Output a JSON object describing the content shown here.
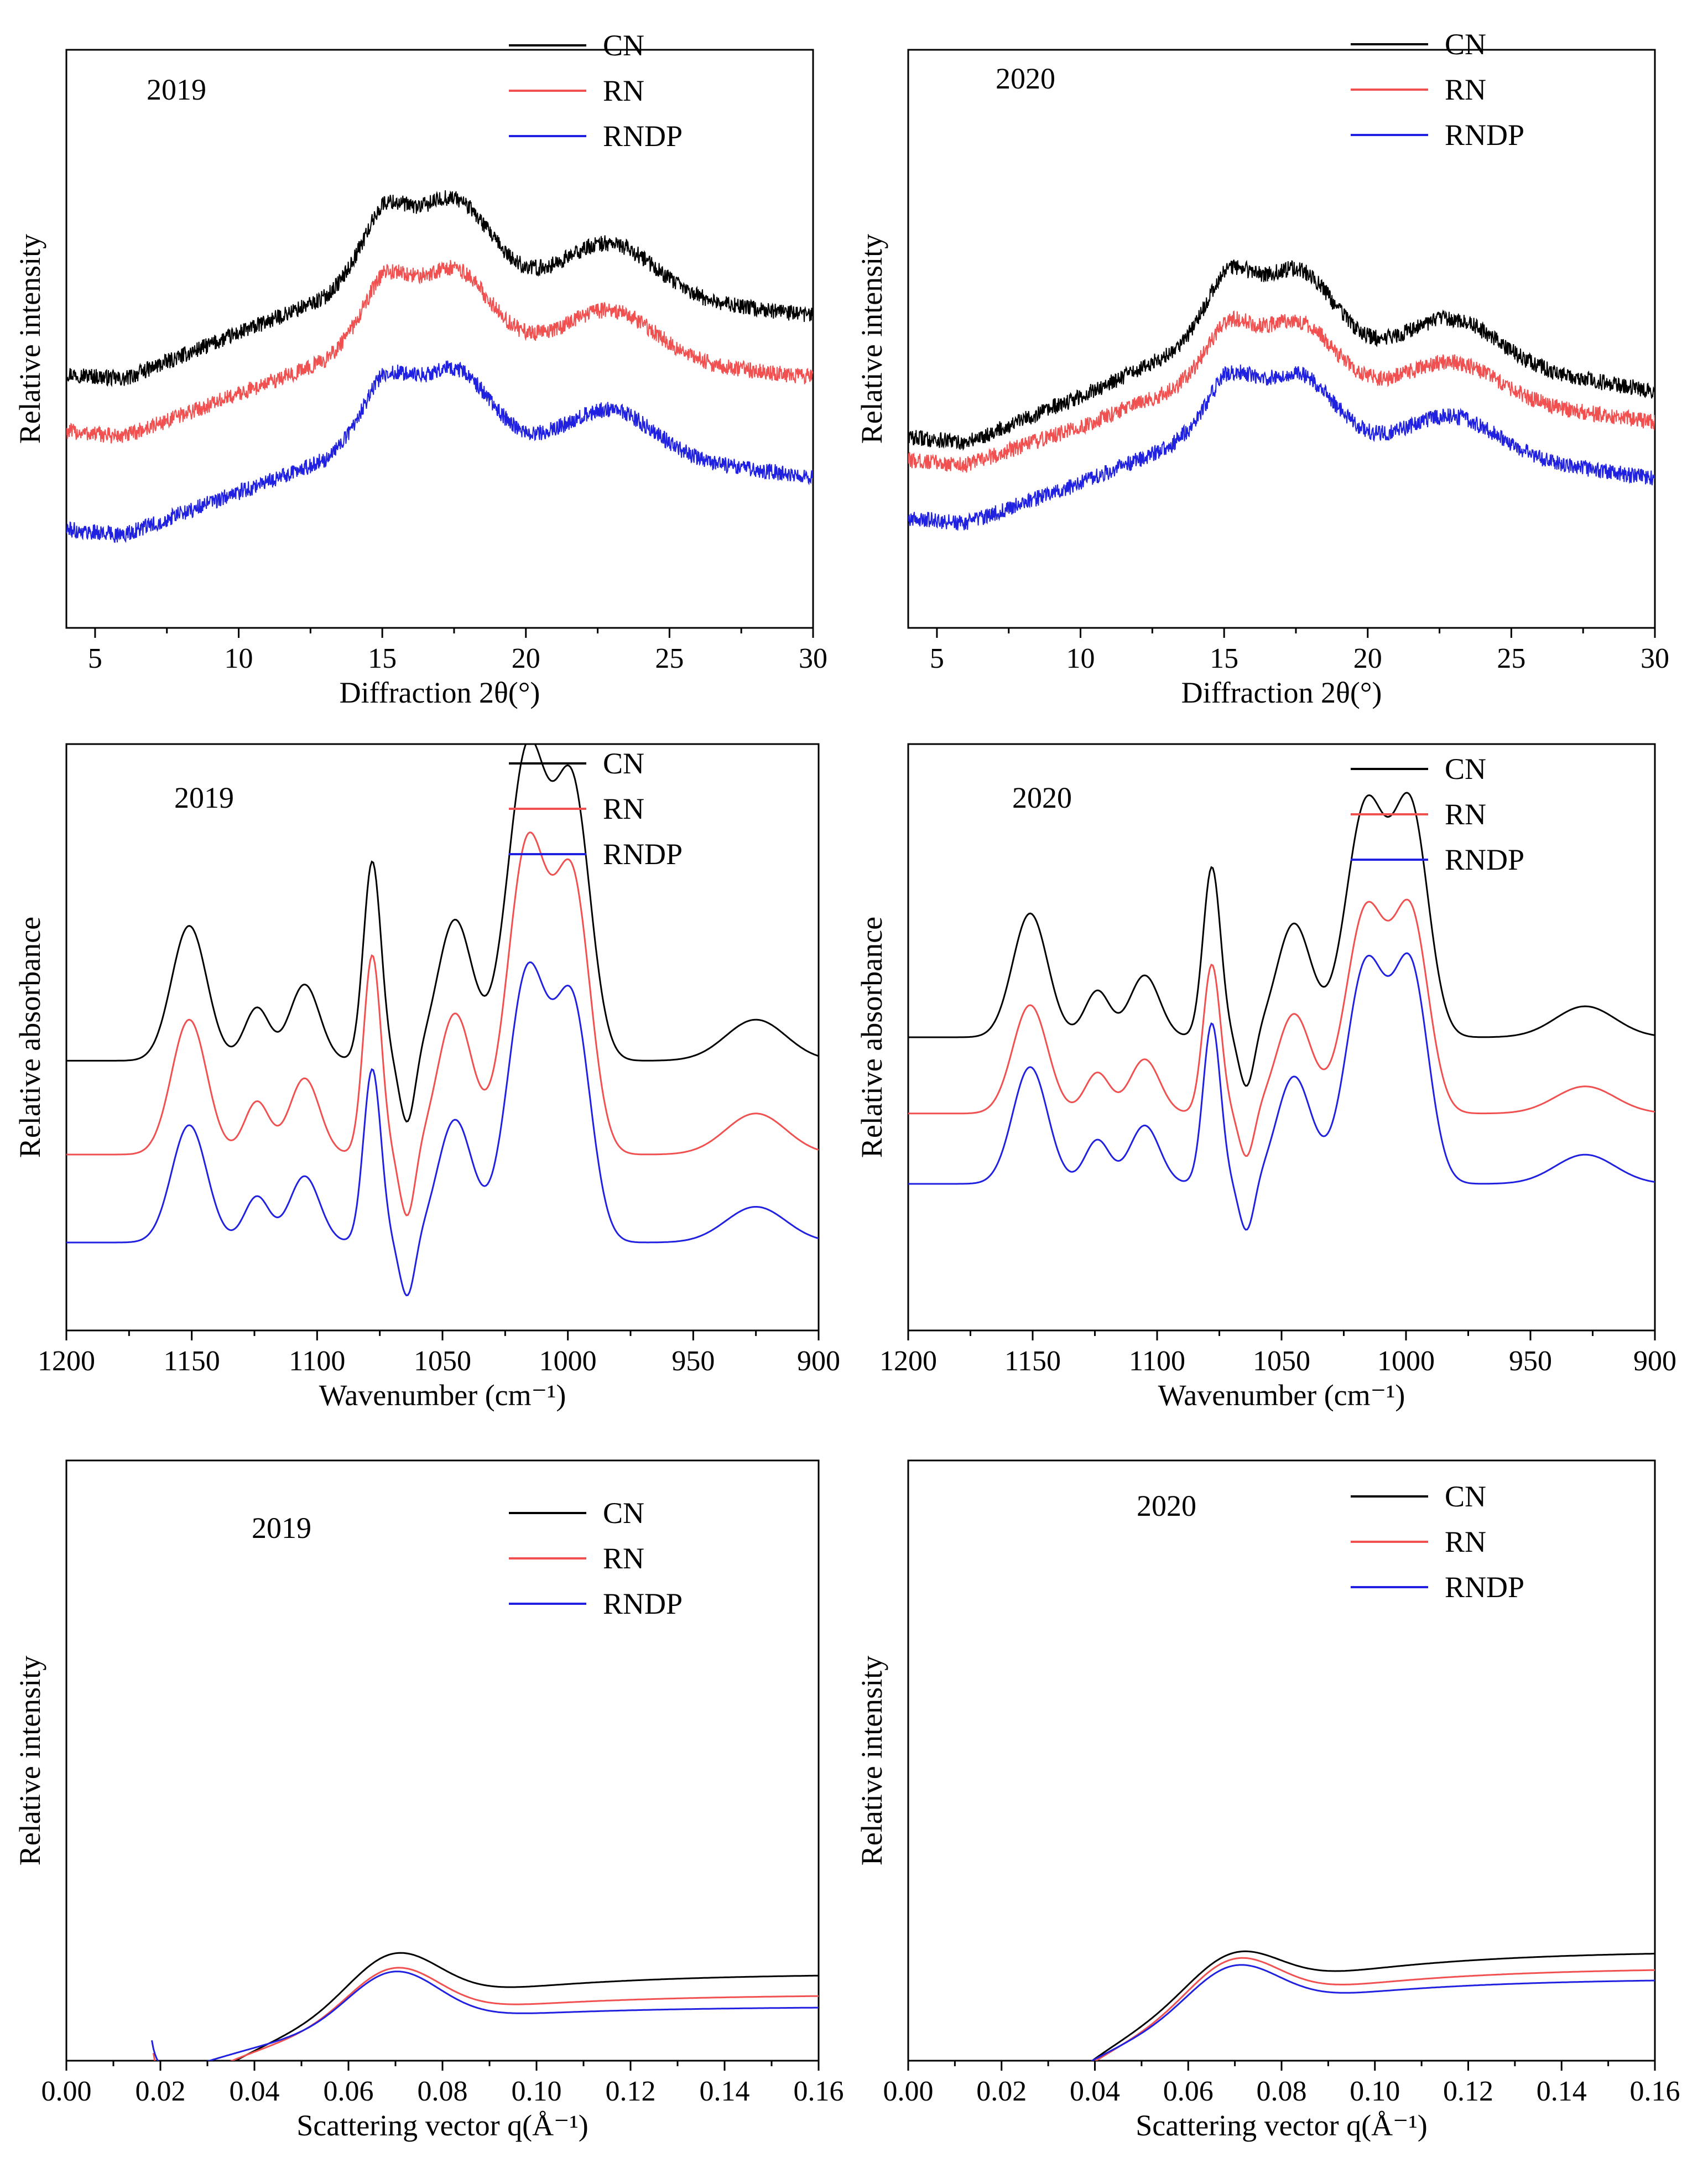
{
  "figure_title": "",
  "chart_data": [
    {
      "id": "xrd-2019",
      "type": "line",
      "title": "2019",
      "xlabel": "Diffraction 2θ(°)",
      "ylabel": "Relative intensity",
      "xlim": [
        4,
        30
      ],
      "ylim": [
        0,
        1
      ],
      "xticks": [
        5,
        10,
        15,
        20,
        25,
        30
      ],
      "xtick_labels": [
        "5",
        "10",
        "15",
        "20",
        "25",
        "30"
      ],
      "reverse_x": false,
      "noise": 0.014,
      "legend": "top-right",
      "series": [
        {
          "name": "CN",
          "color": "#000000",
          "offset": 0.44,
          "scale": 1.0
        },
        {
          "name": "RN",
          "color": "#f05050",
          "offset": 0.34,
          "scale": 0.93
        },
        {
          "name": "RNDP",
          "color": "#2020e0",
          "offset": 0.17,
          "scale": 0.92
        }
      ],
      "baseline": [
        [
          4,
          0.0
        ],
        [
          6,
          -0.01
        ],
        [
          10,
          0.07
        ],
        [
          13,
          0.13
        ],
        [
          15,
          0.2
        ],
        [
          20,
          0.16
        ],
        [
          25,
          0.13
        ],
        [
          30,
          0.1
        ]
      ],
      "peaks": [
        [
          15.1,
          0.8,
          0.22
        ],
        [
          17.5,
          1.2,
          0.34
        ],
        [
          23.0,
          1.5,
          0.23
        ]
      ]
    },
    {
      "id": "xrd-2020",
      "type": "line",
      "title": "2020",
      "xlabel": "Diffraction 2θ(°)",
      "ylabel": "Relative intensity",
      "xlim": [
        4,
        30
      ],
      "ylim": [
        0,
        1
      ],
      "xticks": [
        5,
        10,
        15,
        20,
        25,
        30
      ],
      "xtick_labels": [
        "5",
        "10",
        "15",
        "20",
        "25",
        "30"
      ],
      "reverse_x": false,
      "noise": 0.014,
      "legend": "top-right",
      "series": [
        {
          "name": "CN",
          "color": "#000000",
          "offset": 0.33,
          "scale": 1.0
        },
        {
          "name": "RN",
          "color": "#f05050",
          "offset": 0.29,
          "scale": 0.83
        },
        {
          "name": "RNDP",
          "color": "#2020e0",
          "offset": 0.19,
          "scale": 0.86
        }
      ],
      "baseline": [
        [
          4,
          0.0
        ],
        [
          6,
          -0.01
        ],
        [
          10,
          0.07
        ],
        [
          13,
          0.14
        ],
        [
          15,
          0.2
        ],
        [
          20,
          0.15
        ],
        [
          25,
          0.12
        ],
        [
          30,
          0.08
        ]
      ],
      "peaks": [
        [
          15.2,
          0.8,
          0.22
        ],
        [
          17.6,
          1.2,
          0.32
        ],
        [
          23.0,
          1.5,
          0.2
        ]
      ]
    },
    {
      "id": "ftir-2019",
      "type": "line",
      "title": "2019",
      "xlabel": "Wavenumber (cm⁻¹)",
      "ylabel": "Relative absorbance",
      "xlim": [
        900,
        1200
      ],
      "ylim": [
        0,
        1
      ],
      "xticks": [
        1200,
        1150,
        1100,
        1050,
        1000,
        950,
        900
      ],
      "xtick_labels": [
        "1200",
        "1150",
        "1100",
        "1050",
        "1000",
        "950",
        "900"
      ],
      "reverse_x": true,
      "noise": 0,
      "legend": "top-right",
      "series": [
        {
          "name": "CN",
          "color": "#000000",
          "offset": 0.46,
          "scale": 1.0
        },
        {
          "name": "RN",
          "color": "#f05050",
          "offset": 0.3,
          "scale": 1.0
        },
        {
          "name": "RNDP",
          "color": "#2020e0",
          "offset": 0.15,
          "scale": 0.87
        }
      ],
      "baseline": [
        [
          900,
          0.0
        ],
        [
          1200,
          0.0
        ]
      ],
      "peaks": [
        [
          1151,
          7,
          0.23
        ],
        [
          1124,
          5,
          0.09
        ],
        [
          1105,
          6,
          0.13
        ],
        [
          1078,
          3.5,
          0.34
        ],
        [
          1064,
          3,
          -0.11
        ],
        [
          1045,
          7,
          0.24
        ],
        [
          1016,
          8,
          0.53
        ],
        [
          998,
          7,
          0.45
        ],
        [
          925,
          12,
          0.07
        ]
      ]
    },
    {
      "id": "ftir-2020",
      "type": "line",
      "title": "2020",
      "xlabel": "Wavenumber (cm⁻¹)",
      "ylabel": "Relative absorbance",
      "xlim": [
        900,
        1200
      ],
      "ylim": [
        0,
        1
      ],
      "xticks": [
        1200,
        1150,
        1100,
        1050,
        1000,
        950,
        900
      ],
      "xtick_labels": [
        "1200",
        "1150",
        "1100",
        "1050",
        "1000",
        "950",
        "900"
      ],
      "reverse_x": true,
      "noise": 0,
      "legend": "top-right",
      "series": [
        {
          "name": "CN",
          "color": "#000000",
          "offset": 0.5,
          "scale": 0.88
        },
        {
          "name": "RN",
          "color": "#f05050",
          "offset": 0.37,
          "scale": 0.77
        },
        {
          "name": "RNDP",
          "color": "#2020e0",
          "offset": 0.25,
          "scale": 0.83
        }
      ],
      "baseline": [
        [
          900,
          0.0
        ],
        [
          1200,
          0.0
        ]
      ],
      "peaks": [
        [
          1151,
          7,
          0.24
        ],
        [
          1124,
          5,
          0.09
        ],
        [
          1105,
          6,
          0.12
        ],
        [
          1078,
          3.5,
          0.33
        ],
        [
          1064,
          3,
          -0.1
        ],
        [
          1045,
          7,
          0.22
        ],
        [
          1016,
          8,
          0.45
        ],
        [
          998,
          7,
          0.43
        ],
        [
          928,
          12,
          0.06
        ]
      ]
    },
    {
      "id": "saxs-2019",
      "type": "line",
      "title": "2019",
      "xlabel": "Scattering vector q(Å⁻¹)",
      "ylabel": "Relative intensity",
      "xlim": [
        0,
        0.16
      ],
      "ylim": [
        0,
        1
      ],
      "xticks": [
        0,
        0.02,
        0.04,
        0.06,
        0.08,
        0.1,
        0.12,
        0.14,
        0.16
      ],
      "xtick_labels": [
        "0.00",
        "0.02",
        "0.04",
        "0.06",
        "0.08",
        "0.10",
        "0.12",
        "0.14",
        "0.16"
      ],
      "reverse_x": false,
      "noise": 0,
      "legend": "top-right",
      "series": [
        {
          "name": "CN",
          "color": "#000000",
          "start": 0.0205,
          "upturn": 0.046,
          "tail": 0.145,
          "peak": 0.087
        },
        {
          "name": "RN",
          "color": "#f05050",
          "start": 0.0185,
          "upturn": 0.036,
          "tail": 0.11,
          "peak": 0.084
        },
        {
          "name": "RNDP",
          "color": "#2020e0",
          "start": 0.018,
          "upturn": 0.036,
          "tail": 0.09,
          "peak": 0.087
        }
      ]
    },
    {
      "id": "saxs-2020",
      "type": "line",
      "title": "2020",
      "xlabel": "Scattering vector q(Å⁻¹)",
      "ylabel": "Relative intensity",
      "xlim": [
        0,
        0.16
      ],
      "ylim": [
        0,
        1
      ],
      "xticks": [
        0,
        0.02,
        0.04,
        0.06,
        0.08,
        0.1,
        0.12,
        0.14,
        0.16
      ],
      "xtick_labels": [
        "0.00",
        "0.02",
        "0.04",
        "0.06",
        "0.08",
        "0.10",
        "0.12",
        "0.14",
        "0.16"
      ],
      "reverse_x": false,
      "noise": 0,
      "legend": "top-right",
      "series": [
        {
          "name": "CN",
          "color": "#000000",
          "start": 0.0215,
          "upturn": 0.046,
          "tail": 0.183,
          "peak": 0.071
        },
        {
          "name": "RN",
          "color": "#f05050",
          "start": 0.0185,
          "upturn": 0.036,
          "tail": 0.155,
          "peak": 0.079
        },
        {
          "name": "RNDP",
          "color": "#2020e0",
          "start": 0.018,
          "upturn": 0.034,
          "tail": 0.137,
          "peak": 0.077
        }
      ]
    }
  ]
}
